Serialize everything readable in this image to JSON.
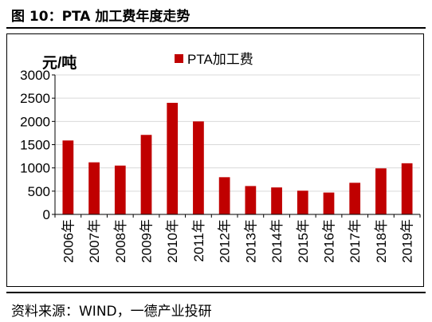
{
  "header": {
    "title": "图 10：PTA 加工费年度走势"
  },
  "footer": {
    "source": "资料来源：WIND，一德产业投研"
  },
  "chart_data": {
    "type": "bar",
    "ylabel": "元/吨",
    "ylim": [
      0,
      3000
    ],
    "yticks": [
      0,
      500,
      1000,
      1500,
      2000,
      2500,
      3000
    ],
    "grid": true,
    "legend_position": "top-center",
    "categories": [
      "2006年",
      "2007年",
      "2008年",
      "2009年",
      "2010年",
      "2011年",
      "2012年",
      "2013年",
      "2014年",
      "2015年",
      "2016年",
      "2017年",
      "2018年",
      "2019年"
    ],
    "series": [
      {
        "name": "PTA加工费",
        "color": "#C00000",
        "values": [
          1590,
          1120,
          1050,
          1710,
          2400,
          2000,
          800,
          610,
          580,
          510,
          470,
          680,
          990,
          1100
        ]
      }
    ]
  }
}
